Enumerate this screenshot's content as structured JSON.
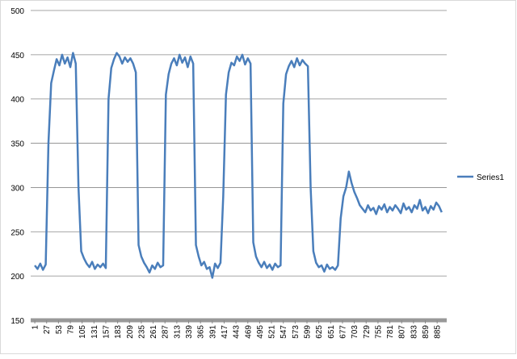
{
  "chart_data": {
    "type": "line",
    "x": [
      1,
      7,
      13,
      19,
      25,
      31,
      37,
      43,
      49,
      55,
      61,
      67,
      73,
      79,
      85,
      91,
      97,
      103,
      109,
      115,
      121,
      127,
      133,
      139,
      145,
      151,
      157,
      163,
      169,
      175,
      181,
      187,
      193,
      199,
      205,
      211,
      217,
      223,
      229,
      235,
      241,
      247,
      253,
      259,
      265,
      271,
      277,
      283,
      289,
      295,
      301,
      307,
      313,
      319,
      325,
      331,
      337,
      343,
      349,
      355,
      361,
      367,
      373,
      379,
      385,
      391,
      397,
      403,
      409,
      415,
      421,
      427,
      433,
      439,
      445,
      451,
      457,
      463,
      469,
      475,
      481,
      487,
      493,
      499,
      505,
      511,
      517,
      523,
      529,
      535,
      541,
      547,
      553,
      559,
      565,
      571,
      577,
      583,
      589,
      595,
      601,
      607,
      613,
      619,
      625,
      631,
      637,
      643,
      649,
      655,
      661,
      667,
      673,
      679,
      685,
      691,
      697,
      703,
      709,
      715,
      721,
      727,
      733,
      739,
      745,
      751,
      757,
      763,
      769,
      775,
      781,
      787,
      793,
      799,
      805,
      811,
      817,
      823,
      829,
      835,
      841,
      847,
      853,
      859,
      865,
      871,
      877,
      883,
      889,
      895
    ],
    "series": [
      {
        "name": "Series1",
        "color": "#4a7ebb",
        "values": [
          212,
          208,
          214,
          207,
          213,
          350,
          418,
          432,
          445,
          438,
          450,
          440,
          447,
          436,
          452,
          440,
          300,
          228,
          220,
          214,
          210,
          216,
          208,
          213,
          210,
          214,
          209,
          400,
          435,
          445,
          452,
          448,
          440,
          447,
          442,
          446,
          440,
          430,
          235,
          222,
          215,
          210,
          204,
          212,
          208,
          215,
          210,
          212,
          405,
          428,
          440,
          446,
          438,
          450,
          441,
          447,
          436,
          448,
          440,
          235,
          222,
          212,
          216,
          208,
          210,
          198,
          214,
          209,
          215,
          290,
          405,
          430,
          441,
          438,
          448,
          443,
          450,
          439,
          446,
          440,
          238,
          222,
          215,
          210,
          216,
          209,
          213,
          207,
          214,
          210,
          212,
          395,
          428,
          437,
          443,
          436,
          446,
          438,
          444,
          440,
          437,
          300,
          228,
          215,
          210,
          212,
          205,
          213,
          208,
          210,
          207,
          212,
          265,
          290,
          300,
          318,
          305,
          295,
          288,
          280,
          276,
          272,
          280,
          274,
          277,
          270,
          279,
          275,
          281,
          272,
          278,
          274,
          280,
          276,
          271,
          282,
          275,
          278,
          272,
          280,
          276,
          286,
          274,
          278,
          271,
          279,
          275,
          283,
          279,
          272
        ]
      }
    ],
    "xlim": [
      -8,
      906
    ],
    "xticks": [
      1,
      27,
      53,
      79,
      105,
      131,
      157,
      183,
      209,
      235,
      261,
      287,
      313,
      339,
      365,
      391,
      417,
      443,
      469,
      495,
      521,
      547,
      573,
      599,
      625,
      651,
      677,
      703,
      729,
      755,
      781,
      807,
      833,
      859,
      885
    ],
    "ylim": [
      150,
      500
    ],
    "yticks": [
      150,
      200,
      250,
      300,
      350,
      400,
      450,
      500
    ],
    "grid": true,
    "legend": "right"
  }
}
